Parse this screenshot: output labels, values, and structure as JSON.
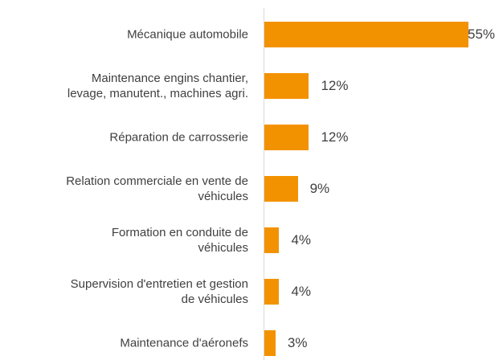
{
  "chart_data": {
    "type": "bar",
    "orientation": "horizontal",
    "categories": [
      "Mécanique automobile",
      "Maintenance engins chantier,\nlevage, manutent., machines agri.",
      "Réparation de carrosserie",
      "Relation commerciale en vente de\nvéhicules",
      "Formation en conduite de\nvéhicules",
      "Supervision d'entretien et gestion\nde véhicules",
      "Maintenance d'aéronefs"
    ],
    "values": [
      55,
      12,
      12,
      9,
      4,
      4,
      3
    ],
    "value_labels": [
      "55%",
      "12%",
      "12%",
      "9%",
      "4%",
      "4%",
      "3%"
    ],
    "color": "#f39200"
  }
}
